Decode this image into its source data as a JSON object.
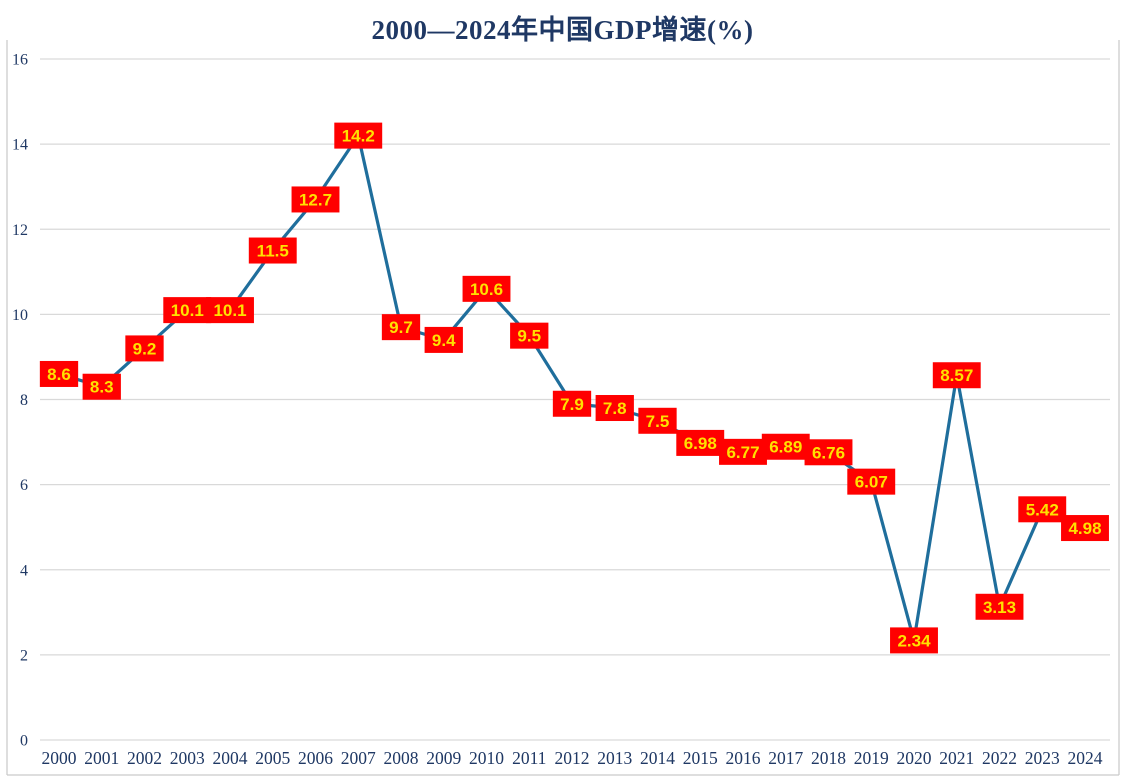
{
  "chart_data": {
    "type": "line",
    "title": "2000—2024年中国GDP增速(%)",
    "xlabel": "",
    "ylabel": "",
    "categories": [
      "2000",
      "2001",
      "2002",
      "2003",
      "2004",
      "2005",
      "2006",
      "2007",
      "2008",
      "2009",
      "2010",
      "2011",
      "2012",
      "2013",
      "2014",
      "2015",
      "2016",
      "2017",
      "2018",
      "2019",
      "2020",
      "2021",
      "2022",
      "2023",
      "2024"
    ],
    "values": [
      8.6,
      8.3,
      9.2,
      10.1,
      10.1,
      11.5,
      12.7,
      14.2,
      9.7,
      9.4,
      10.6,
      9.5,
      7.9,
      7.8,
      7.5,
      6.98,
      6.77,
      6.89,
      6.76,
      6.07,
      2.34,
      8.57,
      3.13,
      5.42,
      4.98
    ],
    "data_labels": [
      "8.6",
      "8.3",
      "9.2",
      "10.1",
      "10.1",
      "11.5",
      "12.7",
      "14.2",
      "9.7",
      "9.4",
      "10.6",
      "9.5",
      "7.9",
      "7.8",
      "7.5",
      "6.98",
      "6.77",
      "6.89",
      "6.76",
      "6.07",
      "2.34",
      "8.57",
      "3.13",
      "5.42",
      "4.98"
    ],
    "ylim": [
      0,
      16
    ],
    "yticks": [
      0,
      2,
      4,
      6,
      8,
      10,
      12,
      14,
      16
    ],
    "grid": true,
    "legend": "none",
    "data_label_position": "center",
    "colors": {
      "line": "#1F6E9C",
      "label_bg": "#FF0000",
      "label_text": "#FFE100",
      "title_text": "#1F3864",
      "axis_text": "#1F3864",
      "gridline": "#D9D9D9",
      "border": "#C9C9C9",
      "background": "#FFFFFF"
    }
  }
}
